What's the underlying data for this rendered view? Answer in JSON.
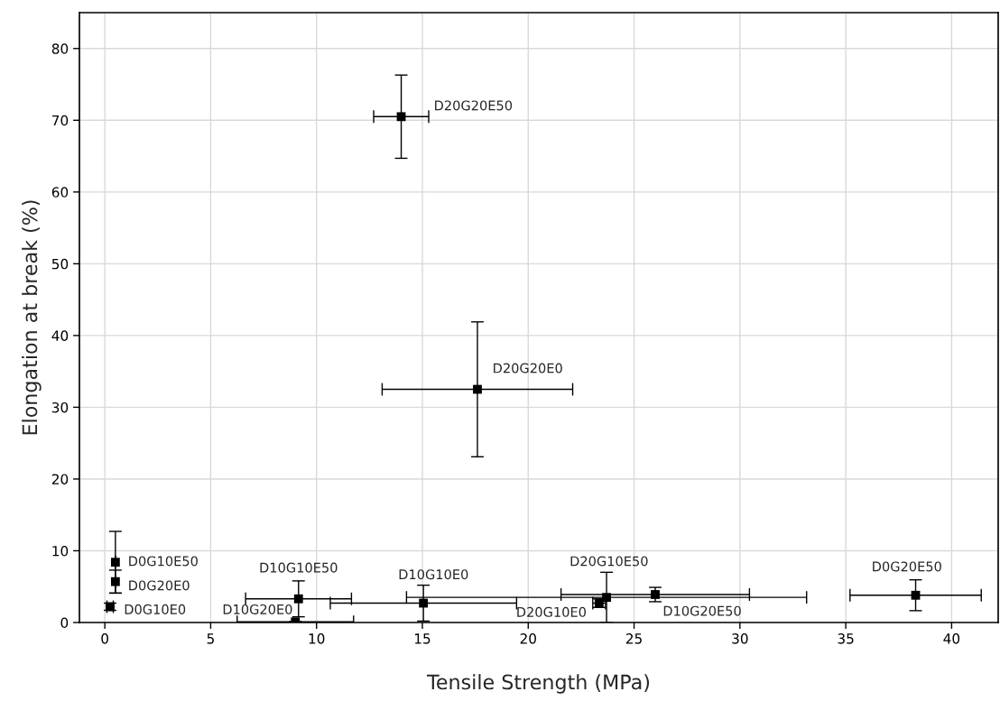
{
  "chart_data": {
    "type": "scatter",
    "xlabel": "Tensile Strength (MPa)",
    "ylabel": "Elongation at break (%)",
    "xlim": [
      -1.2,
      42.2
    ],
    "xticks": [
      0,
      5,
      10,
      15,
      20,
      25,
      30,
      35,
      40
    ],
    "ylim": [
      0,
      85
    ],
    "yticks": [
      0,
      10,
      20,
      30,
      40,
      50,
      60,
      70,
      80
    ],
    "grid": true,
    "marker": "square",
    "series": [
      {
        "color": "#000000",
        "x": [
          14.0,
          17.6,
          0.5,
          0.5,
          0.25,
          9.15,
          9.0,
          15.05,
          23.7,
          23.35,
          26.0,
          38.3
        ],
        "values": [
          70.5,
          32.5,
          8.4,
          5.7,
          2.2,
          3.3,
          0.1,
          2.7,
          3.5,
          2.7,
          3.9,
          3.8
        ],
        "errors": [
          5.8,
          9.4,
          4.3,
          1.6,
          0.5,
          2.5,
          null,
          2.5,
          3.5,
          0.6,
          1.0,
          2.15
        ],
        "xerrors": [
          1.3,
          4.5,
          null,
          null,
          0.15,
          2.5,
          2.75,
          4.4,
          9.45,
          0.3,
          4.45,
          3.1
        ]
      }
    ],
    "annotations": [
      {
        "text": "D20G20E50",
        "x": 14.0,
        "y": 70.5
      },
      {
        "text": "D20G20E0",
        "x": 17.6,
        "y": 32.5
      },
      {
        "text": "D0G10E50",
        "x": 0.5,
        "y": 8.4
      },
      {
        "text": "D0G20E0",
        "x": 0.5,
        "y": 5.7
      },
      {
        "text": "D0G10E0",
        "x": 0.25,
        "y": 2.2
      },
      {
        "text": "D10G10E50",
        "x": 9.15,
        "y": 3.3
      },
      {
        "text": "D10G20E0",
        "x": 9.0,
        "y": 0.1
      },
      {
        "text": "D10G10E0",
        "x": 15.05,
        "y": 2.7
      },
      {
        "text": "D20G10E50",
        "x": 23.7,
        "y": 3.5
      },
      {
        "text": "D20G10E0",
        "x": 23.35,
        "y": 2.7
      },
      {
        "text": "D10G20E50",
        "x": 26.0,
        "y": 3.9
      },
      {
        "text": "D0G20E50",
        "x": 38.3,
        "y": 3.8
      }
    ]
  }
}
